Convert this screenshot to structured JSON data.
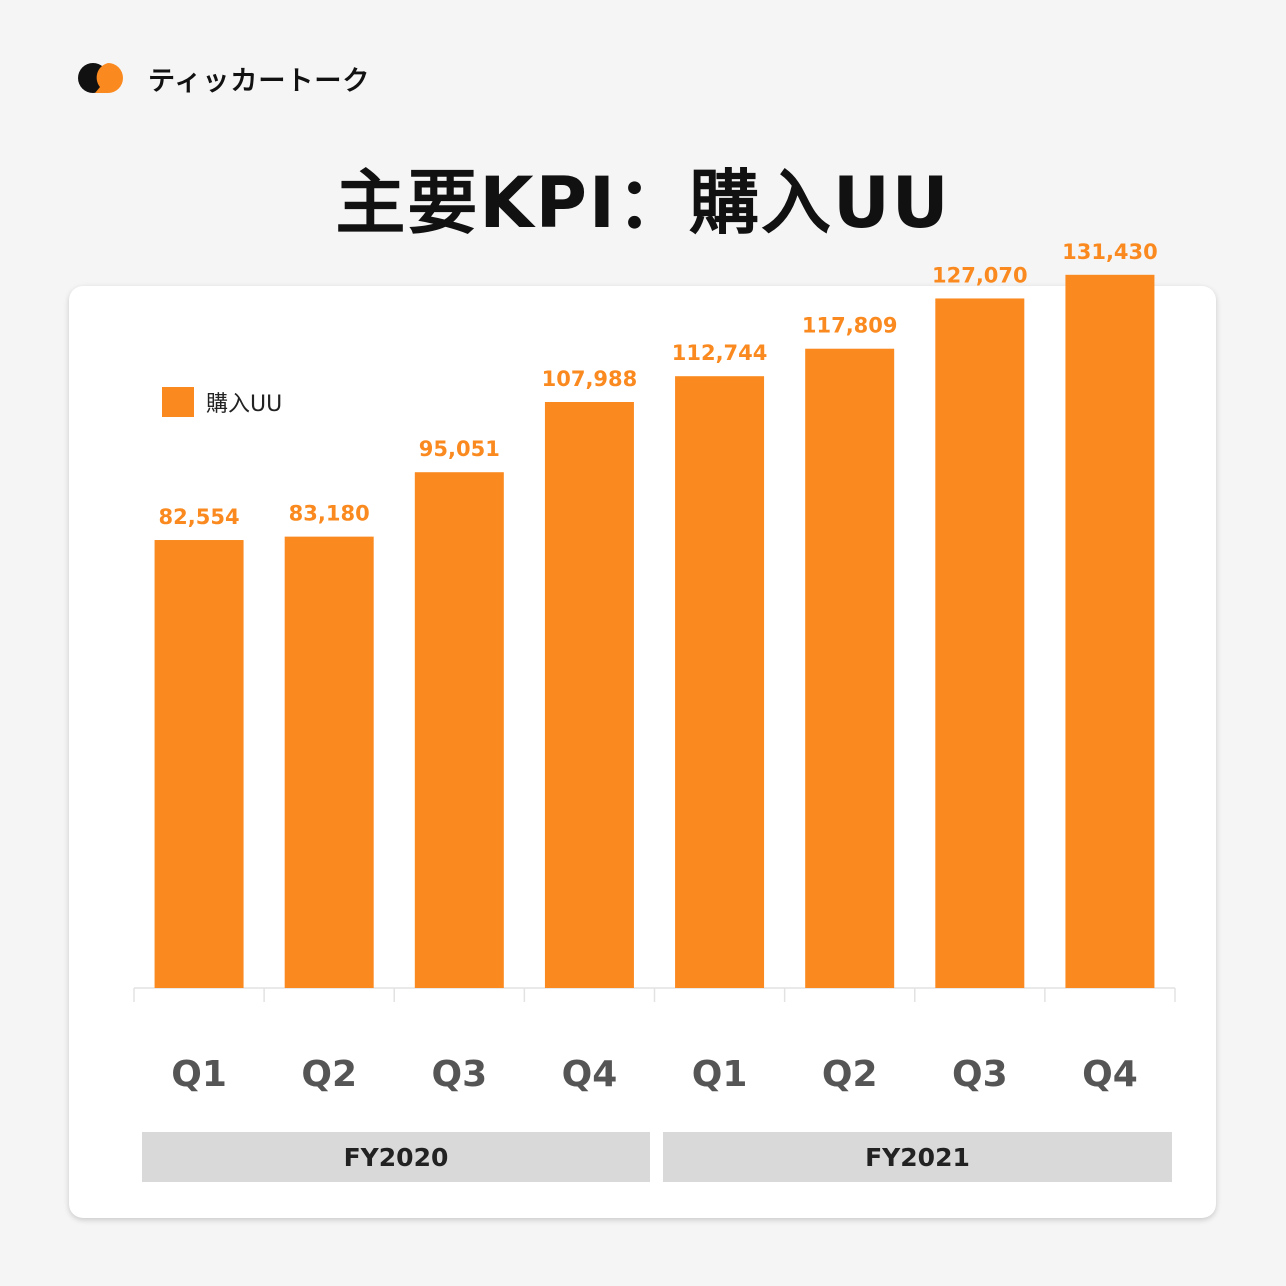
{
  "brand": {
    "name": "ティッカートーク",
    "colors": {
      "dark": "#111111",
      "accent": "#fa8a1f"
    }
  },
  "title": "主要KPI：購入UU",
  "chart_data": {
    "type": "bar",
    "categories": [
      "Q1",
      "Q2",
      "Q3",
      "Q4",
      "Q1",
      "Q2",
      "Q3",
      "Q4"
    ],
    "groups": [
      {
        "label": "FY2020",
        "categories": [
          0,
          1,
          2,
          3
        ]
      },
      {
        "label": "FY2021",
        "categories": [
          4,
          5,
          6,
          7
        ]
      }
    ],
    "series": [
      {
        "name": "購入UU",
        "color": "#fa8a1f",
        "values": [
          82554,
          83180,
          95051,
          107988,
          112744,
          117809,
          127070,
          131430
        ],
        "labels": [
          "82,554",
          "83,180",
          "95,051",
          "107,988",
          "112,744",
          "117,809",
          "127,070",
          "131,430"
        ]
      }
    ],
    "ylim": [
      0,
      136000
    ],
    "grid": false,
    "legend": "top-left",
    "title": "",
    "xlabel": "",
    "ylabel": ""
  }
}
